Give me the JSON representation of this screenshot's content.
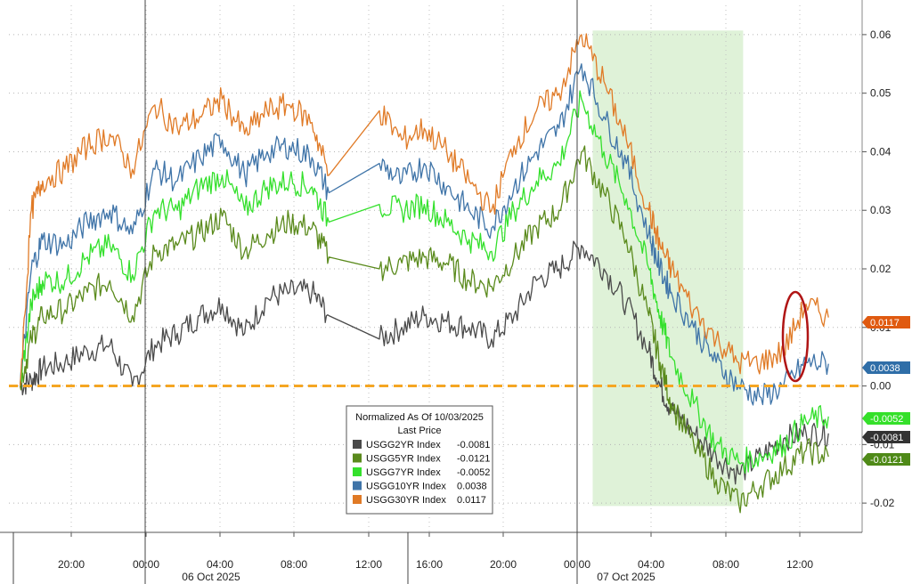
{
  "chart_data": {
    "type": "line",
    "title": "",
    "y_range": [
      -0.025,
      0.065
    ],
    "y_ticks": [
      "0.06",
      "0.05",
      "0.04",
      "0.03",
      "0.02",
      "0.01",
      "0.00",
      "-0.01",
      "-0.02"
    ],
    "x_ticks": [
      "20:00",
      "00:00",
      "04:00",
      "08:00",
      "12:00",
      "16:00",
      "20:00",
      "00:00",
      "04:00",
      "08:00",
      "12:00"
    ],
    "date_labels": [
      "06 Oct 2025",
      "07 Oct 2025"
    ],
    "grid": true,
    "zero_line_color": "#f5a623",
    "highlight_band": {
      "from": "07 Oct 04:00",
      "to": "07 Oct 10:30",
      "color": "#dff2d8"
    },
    "legend": {
      "title_line1": "Normalized As Of 10/03/2025",
      "title_line2": "Last Price",
      "placement": "bottom-center",
      "entries": [
        {
          "name": "USGG2YR Index",
          "value": "-0.0081",
          "color": "#4a4a4a"
        },
        {
          "name": "USGG5YR Index",
          "value": "-0.0121",
          "color": "#5a8a1c"
        },
        {
          "name": "USGG7YR Index",
          "value": "-0.0052",
          "color": "#34e02c"
        },
        {
          "name": "USGG10YR Index",
          "value": "0.0038",
          "color": "#3f74a8"
        },
        {
          "name": "USGG30YR Index",
          "value": "0.0117",
          "color": "#e07a26"
        }
      ]
    },
    "last_value_badges": [
      {
        "label": "0.0117",
        "value": 0.0117,
        "color": "#e05a10"
      },
      {
        "label": "0.0038",
        "value": 0.0038,
        "color": "#2f6ea8"
      },
      {
        "label": "-0.0052",
        "value": -0.0052,
        "color": "#35e02a"
      },
      {
        "label": "-0.0081",
        "value": -0.0081,
        "color": "#333333"
      },
      {
        "label": "-0.0121",
        "value": -0.0121,
        "color": "#4f8a18"
      }
    ],
    "series": [
      {
        "name": "USGG30YR Index",
        "color": "#e07a26",
        "x": [
          0,
          0.5,
          1,
          2,
          3,
          4,
          5,
          6,
          7,
          8,
          9,
          10,
          11,
          12,
          13,
          13.75,
          16,
          17,
          18,
          19,
          20,
          21,
          22,
          23,
          24,
          25,
          26,
          27,
          28,
          28.5,
          29,
          30,
          31,
          32,
          33,
          34,
          35,
          36
        ],
        "y": [
          0.0,
          0.03,
          0.035,
          0.037,
          0.041,
          0.043,
          0.037,
          0.048,
          0.044,
          0.046,
          0.049,
          0.043,
          0.047,
          0.048,
          0.045,
          0.036,
          0.047,
          0.042,
          0.044,
          0.04,
          0.035,
          0.03,
          0.041,
          0.047,
          0.05,
          0.06,
          0.052,
          0.042,
          0.03,
          0.024,
          0.02,
          0.013,
          0.008,
          0.004,
          0.004,
          0.006,
          0.014,
          0.0117
        ]
      },
      {
        "name": "USGG10YR Index",
        "color": "#3f74a8",
        "x": [
          0,
          0.5,
          1,
          2,
          3,
          4,
          5,
          6,
          7,
          8,
          9,
          10,
          11,
          12,
          13,
          13.75,
          16,
          17,
          18,
          19,
          20,
          21,
          22,
          23,
          24,
          25,
          26,
          27,
          28,
          28.5,
          29,
          30,
          31,
          32,
          33,
          34,
          35,
          36
        ],
        "y": [
          0.0,
          0.02,
          0.025,
          0.024,
          0.028,
          0.03,
          0.026,
          0.037,
          0.035,
          0.039,
          0.042,
          0.036,
          0.04,
          0.041,
          0.039,
          0.033,
          0.038,
          0.035,
          0.038,
          0.034,
          0.03,
          0.027,
          0.034,
          0.04,
          0.044,
          0.055,
          0.046,
          0.038,
          0.026,
          0.02,
          0.016,
          0.01,
          0.004,
          0.0,
          -0.002,
          0.0,
          0.004,
          0.0038
        ]
      },
      {
        "name": "USGG7YR Index",
        "color": "#34e02c",
        "x": [
          0,
          0.5,
          1,
          2,
          3,
          4,
          5,
          6,
          7,
          8,
          9,
          10,
          11,
          12,
          13,
          13.75,
          16,
          17,
          18,
          19,
          20,
          21,
          22,
          23,
          24,
          25,
          26,
          27,
          28,
          28.5,
          29,
          30,
          31,
          32,
          33,
          34,
          35,
          36
        ],
        "y": [
          0.0,
          0.014,
          0.018,
          0.018,
          0.022,
          0.024,
          0.019,
          0.03,
          0.03,
          0.034,
          0.036,
          0.03,
          0.034,
          0.035,
          0.034,
          0.028,
          0.031,
          0.03,
          0.031,
          0.028,
          0.025,
          0.023,
          0.03,
          0.035,
          0.038,
          0.049,
          0.04,
          0.032,
          0.02,
          0.012,
          0.005,
          -0.003,
          -0.01,
          -0.013,
          -0.012,
          -0.01,
          -0.006,
          -0.0052
        ]
      },
      {
        "name": "USGG5YR Index",
        "color": "#5a8a1c",
        "x": [
          0,
          0.5,
          1,
          2,
          3,
          4,
          5,
          6,
          7,
          8,
          9,
          10,
          11,
          12,
          13,
          13.75,
          16,
          17,
          18,
          19,
          20,
          21,
          22,
          23,
          24,
          25,
          26,
          27,
          28,
          28.5,
          29,
          30,
          31,
          32,
          33,
          34,
          35,
          36
        ],
        "y": [
          0.0,
          0.008,
          0.012,
          0.013,
          0.016,
          0.018,
          0.012,
          0.023,
          0.024,
          0.026,
          0.029,
          0.023,
          0.026,
          0.028,
          0.027,
          0.022,
          0.02,
          0.021,
          0.022,
          0.021,
          0.018,
          0.017,
          0.022,
          0.027,
          0.03,
          0.04,
          0.033,
          0.025,
          0.012,
          0.004,
          -0.003,
          -0.01,
          -0.016,
          -0.02,
          -0.017,
          -0.014,
          -0.011,
          -0.0121
        ]
      },
      {
        "name": "USGG2YR Index",
        "color": "#4a4a4a",
        "x": [
          0,
          0.5,
          1,
          2,
          3,
          4,
          5,
          6,
          7,
          8,
          9,
          10,
          11,
          12,
          13,
          13.75,
          16,
          17,
          18,
          19,
          20,
          21,
          22,
          23,
          24,
          25,
          26,
          27,
          28,
          28.5,
          29,
          30,
          31,
          32,
          33,
          34,
          35,
          36
        ],
        "y": [
          0.0,
          0.001,
          0.003,
          0.004,
          0.006,
          0.007,
          0.0,
          0.007,
          0.009,
          0.012,
          0.014,
          0.009,
          0.015,
          0.016,
          0.016,
          0.012,
          0.008,
          0.01,
          0.012,
          0.011,
          0.01,
          0.008,
          0.012,
          0.018,
          0.02,
          0.024,
          0.02,
          0.014,
          0.006,
          0.0,
          -0.004,
          -0.008,
          -0.012,
          -0.015,
          -0.012,
          -0.009,
          -0.008,
          -0.0081
        ]
      }
    ]
  }
}
